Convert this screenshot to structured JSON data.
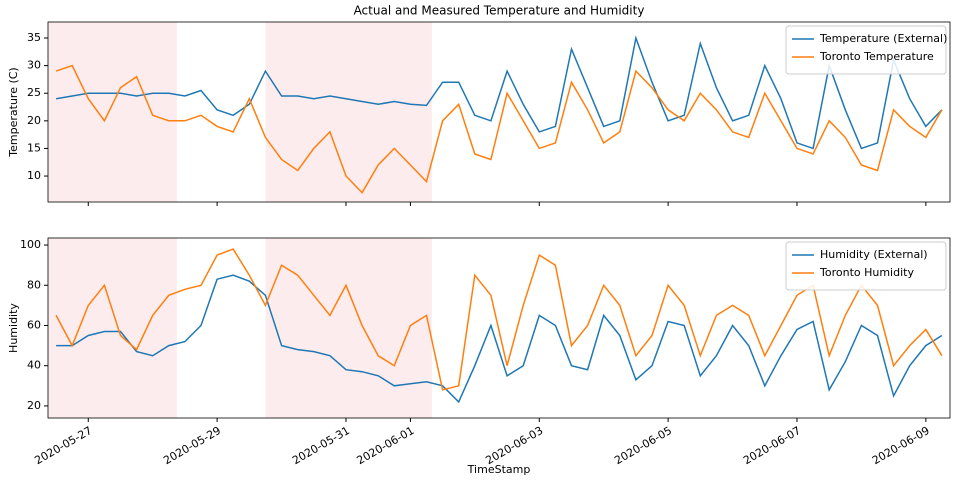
{
  "chart_data": [
    {
      "type": "line",
      "title": "Actual and Measured Temperature and Humidity",
      "ylabel": "Temperature (C)",
      "x": [
        "2020-05-26 12:00",
        "2020-05-26 18:00",
        "2020-05-27 00:00",
        "2020-05-27 06:00",
        "2020-05-27 12:00",
        "2020-05-27 18:00",
        "2020-05-28 00:00",
        "2020-05-28 06:00",
        "2020-05-28 12:00",
        "2020-05-28 18:00",
        "2020-05-29 00:00",
        "2020-05-29 06:00",
        "2020-05-29 12:00",
        "2020-05-29 18:00",
        "2020-05-30 00:00",
        "2020-05-30 06:00",
        "2020-05-30 12:00",
        "2020-05-30 18:00",
        "2020-05-31 00:00",
        "2020-05-31 06:00",
        "2020-05-31 12:00",
        "2020-05-31 18:00",
        "2020-06-01 00:00",
        "2020-06-01 06:00",
        "2020-06-01 12:00",
        "2020-06-01 18:00",
        "2020-06-02 00:00",
        "2020-06-02 06:00",
        "2020-06-02 12:00",
        "2020-06-02 18:00",
        "2020-06-03 00:00",
        "2020-06-03 06:00",
        "2020-06-03 12:00",
        "2020-06-03 18:00",
        "2020-06-04 00:00",
        "2020-06-04 06:00",
        "2020-06-04 12:00",
        "2020-06-04 18:00",
        "2020-06-05 00:00",
        "2020-06-05 06:00",
        "2020-06-05 12:00",
        "2020-06-05 18:00",
        "2020-06-06 00:00",
        "2020-06-06 06:00",
        "2020-06-06 12:00",
        "2020-06-06 18:00",
        "2020-06-07 00:00",
        "2020-06-07 06:00",
        "2020-06-07 12:00",
        "2020-06-07 18:00",
        "2020-06-08 00:00",
        "2020-06-08 06:00",
        "2020-06-08 12:00",
        "2020-06-08 18:00",
        "2020-06-09 00:00",
        "2020-06-09 06:00"
      ],
      "series": [
        {
          "name": "Temperature (External)",
          "color": "#1f77b4",
          "values": [
            24,
            24.5,
            25,
            25,
            25,
            24.5,
            25,
            25,
            24.5,
            25.5,
            22,
            21,
            23,
            29,
            24.5,
            24.5,
            24,
            24.5,
            24,
            23.5,
            23,
            23.5,
            23,
            22.8,
            27,
            27,
            21,
            20,
            29,
            23,
            18,
            19,
            33,
            26,
            19,
            20,
            35,
            27,
            20,
            21,
            34,
            26,
            20,
            21,
            30,
            24,
            16,
            15,
            30,
            22,
            15,
            16,
            31,
            24,
            19,
            22
          ]
        },
        {
          "name": "Toronto Temperature",
          "color": "#ff7f0e",
          "values": [
            29,
            30,
            24,
            20,
            26,
            28,
            21,
            20,
            20,
            21,
            19,
            18,
            24,
            17,
            13,
            11,
            15,
            18,
            10,
            7,
            12,
            15,
            12,
            9,
            20,
            23,
            14,
            13,
            25,
            20,
            15,
            16,
            27,
            22,
            16,
            18,
            29,
            26,
            22,
            20,
            25,
            22,
            18,
            17,
            25,
            20,
            15,
            14,
            20,
            17,
            12,
            11,
            22,
            19,
            17,
            22
          ]
        }
      ],
      "xlim": [
        "2020-05-26 09:00",
        "2020-06-09 09:00"
      ],
      "ylim": [
        5.3,
        37.9
      ],
      "yticks": [
        10,
        15,
        20,
        25,
        30,
        35
      ],
      "shaded_spans": [
        [
          "2020-05-26 09:00",
          "2020-05-28 09:00"
        ],
        [
          "2020-05-29 18:00",
          "2020-06-01 08:00"
        ]
      ],
      "shade_color": "#fdecee",
      "legend": "upper right"
    },
    {
      "type": "line",
      "ylabel": "Humidity",
      "xlabel": "TimeStamp",
      "x": [
        "2020-05-26 12:00",
        "2020-05-26 18:00",
        "2020-05-27 00:00",
        "2020-05-27 06:00",
        "2020-05-27 12:00",
        "2020-05-27 18:00",
        "2020-05-28 00:00",
        "2020-05-28 06:00",
        "2020-05-28 12:00",
        "2020-05-28 18:00",
        "2020-05-29 00:00",
        "2020-05-29 06:00",
        "2020-05-29 12:00",
        "2020-05-29 18:00",
        "2020-05-30 00:00",
        "2020-05-30 06:00",
        "2020-05-30 12:00",
        "2020-05-30 18:00",
        "2020-05-31 00:00",
        "2020-05-31 06:00",
        "2020-05-31 12:00",
        "2020-05-31 18:00",
        "2020-06-01 00:00",
        "2020-06-01 06:00",
        "2020-06-01 12:00",
        "2020-06-01 18:00",
        "2020-06-02 00:00",
        "2020-06-02 06:00",
        "2020-06-02 12:00",
        "2020-06-02 18:00",
        "2020-06-03 00:00",
        "2020-06-03 06:00",
        "2020-06-03 12:00",
        "2020-06-03 18:00",
        "2020-06-04 00:00",
        "2020-06-04 06:00",
        "2020-06-04 12:00",
        "2020-06-04 18:00",
        "2020-06-05 00:00",
        "2020-06-05 06:00",
        "2020-06-05 12:00",
        "2020-06-05 18:00",
        "2020-06-06 00:00",
        "2020-06-06 06:00",
        "2020-06-06 12:00",
        "2020-06-06 18:00",
        "2020-06-07 00:00",
        "2020-06-07 06:00",
        "2020-06-07 12:00",
        "2020-06-07 18:00",
        "2020-06-08 00:00",
        "2020-06-08 06:00",
        "2020-06-08 12:00",
        "2020-06-08 18:00",
        "2020-06-09 00:00",
        "2020-06-09 06:00"
      ],
      "series": [
        {
          "name": "Humidity (External)",
          "color": "#1f77b4",
          "values": [
            50,
            50,
            55,
            57,
            57,
            47,
            45,
            50,
            52,
            60,
            83,
            85,
            82,
            75,
            50,
            48,
            47,
            45,
            38,
            37,
            35,
            30,
            31,
            32,
            30,
            22,
            40,
            60,
            35,
            40,
            65,
            60,
            40,
            38,
            65,
            55,
            33,
            40,
            62,
            60,
            35,
            45,
            60,
            50,
            30,
            45,
            58,
            62,
            28,
            42,
            60,
            55,
            25,
            40,
            50,
            55
          ]
        },
        {
          "name": "Toronto Humidity",
          "color": "#ff7f0e",
          "values": [
            65,
            50,
            70,
            80,
            55,
            48,
            65,
            75,
            78,
            80,
            95,
            98,
            85,
            70,
            90,
            85,
            75,
            65,
            80,
            60,
            45,
            40,
            60,
            65,
            28,
            30,
            85,
            75,
            40,
            70,
            95,
            90,
            50,
            60,
            80,
            70,
            45,
            55,
            80,
            70,
            45,
            65,
            70,
            65,
            45,
            60,
            75,
            80,
            45,
            65,
            80,
            70,
            40,
            50,
            58,
            45
          ]
        }
      ],
      "xlim": [
        "2020-05-26 09:00",
        "2020-06-09 09:00"
      ],
      "ylim": [
        14,
        103.5
      ],
      "yticks": [
        20,
        40,
        60,
        80,
        100
      ],
      "xticks": [
        "2020-05-27",
        "2020-05-29",
        "2020-05-31",
        "2020-06-01",
        "2020-06-03",
        "2020-06-05",
        "2020-06-07",
        "2020-06-09"
      ],
      "shaded_spans": [
        [
          "2020-05-26 09:00",
          "2020-05-28 09:00"
        ],
        [
          "2020-05-29 18:00",
          "2020-06-01 08:00"
        ]
      ],
      "shade_color": "#fdecee",
      "legend": "upper right"
    }
  ]
}
